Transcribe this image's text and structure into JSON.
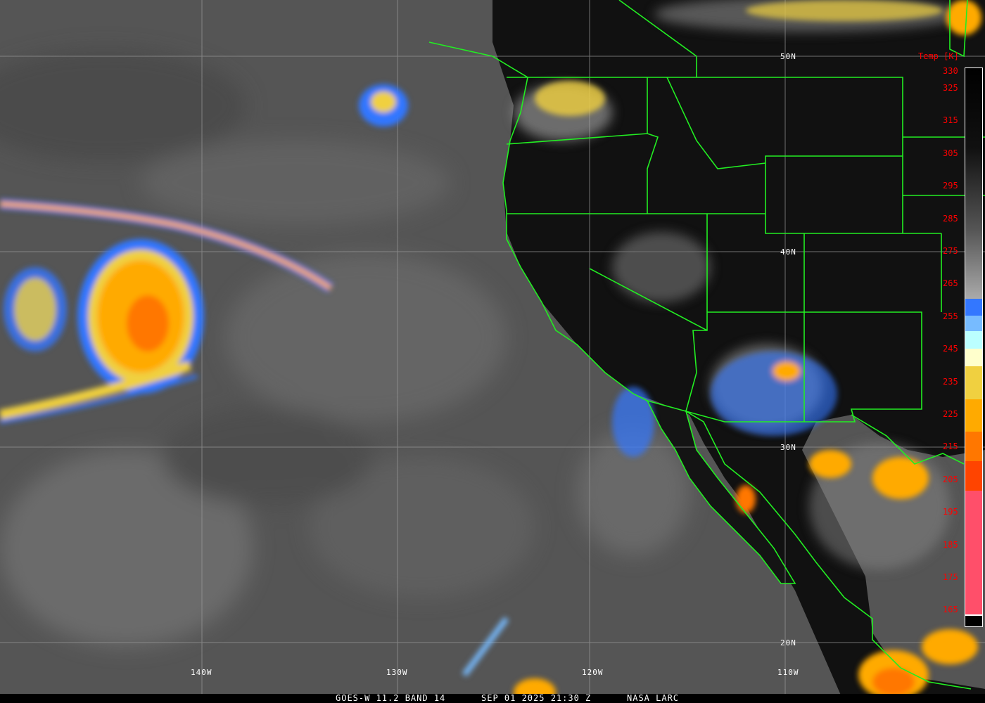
{
  "caption": {
    "product": "GOES-W 11.2 BAND 14",
    "datetime": "SEP 01 2025 21:30 Z",
    "credit": "NASA LARC"
  },
  "grid": {
    "latitudes": [
      "50N",
      "40N",
      "30N",
      "20N"
    ],
    "longitudes": [
      "140W",
      "130W",
      "120W",
      "110W"
    ]
  },
  "colorbar": {
    "title": "Temp [K]",
    "ticks": [
      "330",
      "325",
      "315",
      "305",
      "295",
      "285",
      "275",
      "265",
      "255",
      "245",
      "235",
      "225",
      "215",
      "205",
      "195",
      "185",
      "175",
      "165"
    ],
    "colors": {
      "blue": "#3377ff",
      "light_blue": "#77bbff",
      "pale_cyan": "#bbffff",
      "cream": "#ffffcc",
      "yellow": "#f0d040",
      "orange": "#ffaa00",
      "dark_orange": "#ff7700",
      "red_orange": "#ff4400",
      "pink": "#ff4f6a"
    }
  },
  "colors": {
    "borders": "#22ee22",
    "ocean": "#5a5a5a",
    "land": "#101010"
  }
}
